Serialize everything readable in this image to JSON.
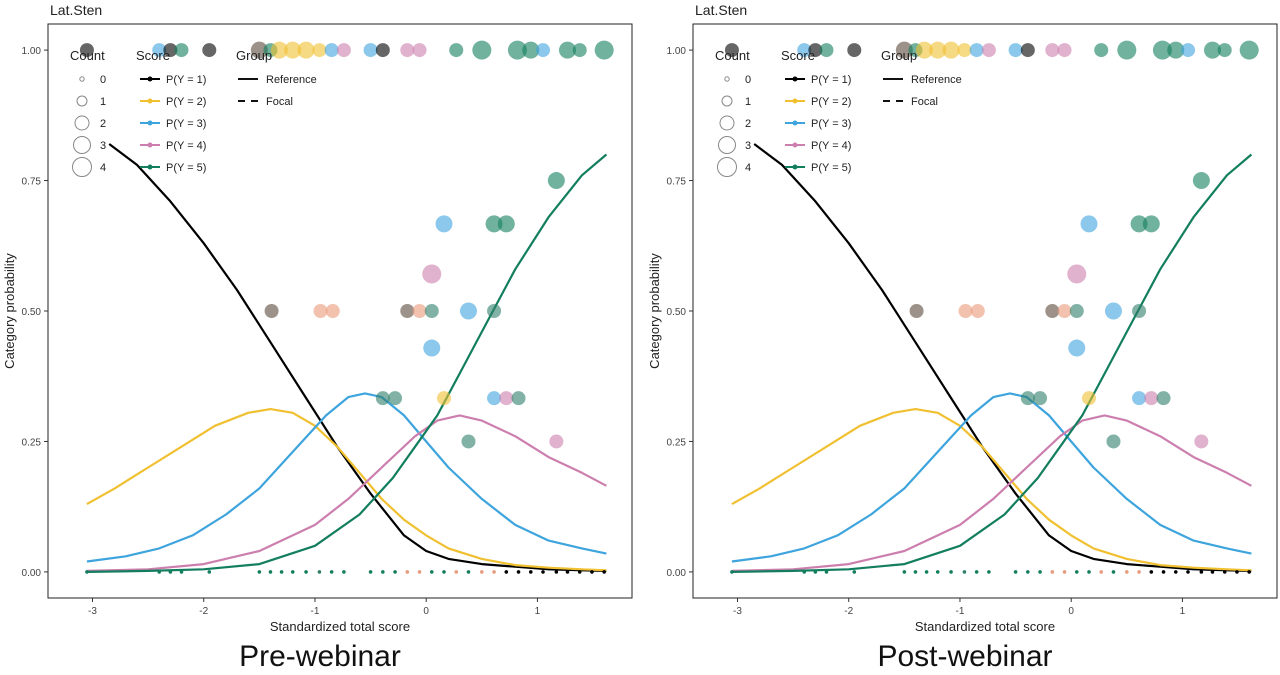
{
  "panels": [
    {
      "caption": "Pre-webinar"
    },
    {
      "caption": "Post-webinar"
    }
  ],
  "strip_label": "Lat.Sten",
  "colors": {
    "p1": "#000000",
    "p2": "#F0C031",
    "p3": "#3EA4DD",
    "p4": "#CC7FAE",
    "p5": "#127E5E",
    "dot_brown": "#5A4A3A",
    "dot_orange": "#E99A7A",
    "dot_teal": "#2E7F6A"
  },
  "legend": {
    "count": {
      "title": "Count",
      "items": [
        "0",
        "1",
        "2",
        "3",
        "4"
      ]
    },
    "score": {
      "title": "Score",
      "items": [
        "P(Y = 1)",
        "P(Y = 2)",
        "P(Y = 3)",
        "P(Y = 4)",
        "P(Y = 5)"
      ]
    },
    "group": {
      "title": "Group",
      "items": [
        "Reference",
        "Focal"
      ]
    }
  },
  "chart_data": {
    "type": "line",
    "xlabel": "Standardized total score",
    "ylabel": "Category probability",
    "xlim": [
      -3.4,
      1.85
    ],
    "ylim": [
      -0.05,
      1.05
    ],
    "xticks": [
      -3,
      -2,
      -1,
      0,
      1
    ],
    "yticks": [
      0.0,
      0.25,
      0.5,
      0.75,
      1.0
    ],
    "ytick_labels": [
      "0.00",
      "0.25",
      "0.50",
      "0.75",
      "1.00"
    ],
    "series": [
      {
        "name": "P(Y = 1)",
        "color_key": "p1",
        "x": [
          -2.85,
          -2.6,
          -2.3,
          -2.0,
          -1.7,
          -1.4,
          -1.1,
          -0.8,
          -0.5,
          -0.2,
          0.0,
          0.2,
          0.5,
          0.8,
          1.1,
          1.4,
          1.62
        ],
        "y": [
          0.82,
          0.78,
          0.71,
          0.63,
          0.54,
          0.44,
          0.34,
          0.24,
          0.15,
          0.07,
          0.04,
          0.025,
          0.015,
          0.01,
          0.005,
          0.003,
          0.002
        ]
      },
      {
        "name": "P(Y = 2)",
        "color_key": "p2",
        "x": [
          -3.05,
          -2.8,
          -2.5,
          -2.2,
          -1.9,
          -1.6,
          -1.4,
          -1.2,
          -1.0,
          -0.8,
          -0.6,
          -0.4,
          -0.2,
          0.0,
          0.2,
          0.5,
          0.8,
          1.1,
          1.4,
          1.62
        ],
        "y": [
          0.13,
          0.16,
          0.2,
          0.24,
          0.28,
          0.305,
          0.312,
          0.305,
          0.28,
          0.24,
          0.19,
          0.14,
          0.1,
          0.07,
          0.045,
          0.025,
          0.013,
          0.008,
          0.005,
          0.003
        ]
      },
      {
        "name": "P(Y = 3)",
        "color_key": "p3",
        "x": [
          -3.05,
          -2.7,
          -2.4,
          -2.1,
          -1.8,
          -1.5,
          -1.2,
          -0.9,
          -0.7,
          -0.55,
          -0.4,
          -0.2,
          0.0,
          0.2,
          0.5,
          0.8,
          1.1,
          1.4,
          1.62
        ],
        "y": [
          0.02,
          0.03,
          0.045,
          0.07,
          0.11,
          0.16,
          0.23,
          0.3,
          0.335,
          0.342,
          0.335,
          0.3,
          0.25,
          0.2,
          0.14,
          0.09,
          0.06,
          0.045,
          0.035
        ]
      },
      {
        "name": "P(Y = 4)",
        "color_key": "p4",
        "x": [
          -3.05,
          -2.5,
          -2.0,
          -1.5,
          -1.0,
          -0.7,
          -0.4,
          -0.1,
          0.1,
          0.3,
          0.5,
          0.8,
          1.1,
          1.4,
          1.62
        ],
        "y": [
          0.002,
          0.005,
          0.015,
          0.04,
          0.09,
          0.14,
          0.2,
          0.26,
          0.29,
          0.3,
          0.29,
          0.26,
          0.22,
          0.19,
          0.165
        ]
      },
      {
        "name": "P(Y = 5)",
        "color_key": "p5",
        "x": [
          -3.05,
          -2.5,
          -2.0,
          -1.5,
          -1.0,
          -0.6,
          -0.3,
          -0.1,
          0.1,
          0.3,
          0.5,
          0.8,
          1.1,
          1.4,
          1.62
        ],
        "y": [
          0.0,
          0.002,
          0.005,
          0.015,
          0.05,
          0.11,
          0.18,
          0.24,
          0.3,
          0.38,
          0.46,
          0.58,
          0.68,
          0.76,
          0.8
        ]
      }
    ],
    "points": [
      {
        "x": -3.05,
        "y": 1.0,
        "count": 2,
        "color_key": "p1"
      },
      {
        "x": -2.4,
        "y": 1.0,
        "count": 2,
        "color_key": "p3"
      },
      {
        "x": -2.3,
        "y": 1.0,
        "count": 2,
        "color_key": "p1"
      },
      {
        "x": -2.2,
        "y": 1.0,
        "count": 2,
        "color_key": "p5"
      },
      {
        "x": -1.95,
        "y": 1.0,
        "count": 2,
        "color_key": "p1"
      },
      {
        "x": -1.5,
        "y": 1.0,
        "count": 3,
        "color_key": "dot_brown"
      },
      {
        "x": -1.4,
        "y": 1.0,
        "count": 2,
        "color_key": "p5"
      },
      {
        "x": -1.32,
        "y": 1.0,
        "count": 3,
        "color_key": "p2"
      },
      {
        "x": -1.2,
        "y": 1.0,
        "count": 3,
        "color_key": "p2"
      },
      {
        "x": -1.08,
        "y": 1.0,
        "count": 3,
        "color_key": "p2"
      },
      {
        "x": -0.96,
        "y": 1.0,
        "count": 2,
        "color_key": "p2"
      },
      {
        "x": -0.85,
        "y": 1.0,
        "count": 2,
        "color_key": "p3"
      },
      {
        "x": -0.74,
        "y": 1.0,
        "count": 2,
        "color_key": "p4"
      },
      {
        "x": -0.5,
        "y": 1.0,
        "count": 2,
        "color_key": "p3"
      },
      {
        "x": -0.39,
        "y": 1.0,
        "count": 2,
        "color_key": "p1"
      },
      {
        "x": -0.17,
        "y": 1.0,
        "count": 2,
        "color_key": "p4"
      },
      {
        "x": -0.06,
        "y": 1.0,
        "count": 2,
        "color_key": "p4"
      },
      {
        "x": 0.27,
        "y": 1.0,
        "count": 2,
        "color_key": "p5"
      },
      {
        "x": 0.5,
        "y": 1.0,
        "count": 4,
        "color_key": "p5"
      },
      {
        "x": 0.82,
        "y": 1.0,
        "count": 4,
        "color_key": "p5"
      },
      {
        "x": 0.94,
        "y": 1.0,
        "count": 3,
        "color_key": "p5"
      },
      {
        "x": 1.05,
        "y": 1.0,
        "count": 2,
        "color_key": "p3"
      },
      {
        "x": 1.27,
        "y": 1.0,
        "count": 3,
        "color_key": "p5"
      },
      {
        "x": 1.38,
        "y": 1.0,
        "count": 2,
        "color_key": "p5"
      },
      {
        "x": 1.6,
        "y": 1.0,
        "count": 4,
        "color_key": "p5"
      },
      {
        "x": 1.17,
        "y": 0.75,
        "count": 3,
        "color_key": "p5"
      },
      {
        "x": 0.16,
        "y": 0.667,
        "count": 3,
        "color_key": "p3"
      },
      {
        "x": 0.61,
        "y": 0.667,
        "count": 3,
        "color_key": "p5"
      },
      {
        "x": 0.72,
        "y": 0.667,
        "count": 3,
        "color_key": "p5"
      },
      {
        "x": 0.05,
        "y": 0.571,
        "count": 4,
        "color_key": "p4"
      },
      {
        "x": -1.39,
        "y": 0.5,
        "count": 2,
        "color_key": "dot_brown"
      },
      {
        "x": -0.95,
        "y": 0.5,
        "count": 2,
        "color_key": "dot_orange"
      },
      {
        "x": -0.84,
        "y": 0.5,
        "count": 2,
        "color_key": "dot_orange"
      },
      {
        "x": -0.17,
        "y": 0.5,
        "count": 2,
        "color_key": "dot_brown"
      },
      {
        "x": -0.06,
        "y": 0.5,
        "count": 2,
        "color_key": "dot_orange"
      },
      {
        "x": 0.05,
        "y": 0.5,
        "count": 2,
        "color_key": "dot_teal"
      },
      {
        "x": 0.38,
        "y": 0.5,
        "count": 3,
        "color_key": "p3"
      },
      {
        "x": 0.61,
        "y": 0.5,
        "count": 2,
        "color_key": "dot_teal"
      },
      {
        "x": 0.05,
        "y": 0.429,
        "count": 3,
        "color_key": "p3"
      },
      {
        "x": -0.39,
        "y": 0.333,
        "count": 2,
        "color_key": "dot_teal"
      },
      {
        "x": -0.28,
        "y": 0.333,
        "count": 2,
        "color_key": "dot_teal"
      },
      {
        "x": 0.16,
        "y": 0.333,
        "count": 2,
        "color_key": "p2"
      },
      {
        "x": 0.61,
        "y": 0.333,
        "count": 2,
        "color_key": "p3"
      },
      {
        "x": 0.72,
        "y": 0.333,
        "count": 2,
        "color_key": "p4"
      },
      {
        "x": 0.83,
        "y": 0.333,
        "count": 2,
        "color_key": "dot_teal"
      },
      {
        "x": 0.38,
        "y": 0.25,
        "count": 2,
        "color_key": "dot_teal"
      },
      {
        "x": 1.17,
        "y": 0.25,
        "count": 2,
        "color_key": "p4"
      }
    ],
    "zero_points_x": [
      -3.05,
      -2.4,
      -2.3,
      -2.2,
      -1.95,
      -1.5,
      -1.4,
      -1.3,
      -1.2,
      -1.08,
      -0.96,
      -0.85,
      -0.74,
      -0.5,
      -0.39,
      -0.28,
      -0.17,
      -0.06,
      0.05,
      0.16,
      0.27,
      0.38,
      0.5,
      0.61,
      0.72,
      0.83,
      0.94,
      1.05,
      1.17,
      1.27,
      1.38,
      1.49,
      1.6
    ],
    "zero_point_colors": [
      "p5",
      "p5",
      "p5",
      "p5",
      "p5",
      "p5",
      "p5",
      "p5",
      "p5",
      "p5",
      "dot_teal",
      "p5",
      "p5",
      "p5",
      "p5",
      "p5",
      "dot_orange",
      "dot_orange",
      "p5",
      "p5",
      "dot_orange",
      "p5",
      "dot_orange",
      "dot_orange",
      "p1",
      "p1",
      "p1",
      "p1",
      "p1",
      "p1",
      "p1",
      "p1",
      "p1"
    ]
  }
}
